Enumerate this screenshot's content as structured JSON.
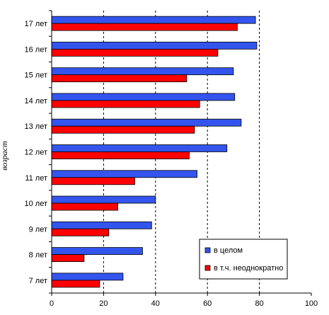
{
  "chart_data": {
    "type": "bar",
    "orientation": "horizontal",
    "categories": [
      "17 лет",
      "16 лет",
      "15 лет",
      "14 лет",
      "13 лет",
      "12 лет",
      "11 лет",
      "10 лет",
      "9 лет",
      "8 лет",
      "7 лет"
    ],
    "series": [
      {
        "name": "в целом",
        "color": "#3355ee",
        "values": [
          78.5,
          79,
          70,
          70.5,
          73,
          67.5,
          56,
          40,
          38.5,
          35,
          27.5
        ]
      },
      {
        "name": "в т.ч. неоднократно",
        "color": "#ff0000",
        "values": [
          71.5,
          64,
          52,
          57,
          55,
          53,
          32,
          25.5,
          22,
          12.5,
          18.5
        ]
      }
    ],
    "ylabel": "возраст",
    "xlabel": "",
    "xlim": [
      0,
      100
    ],
    "xticks": [
      "0",
      "20",
      "40",
      "60",
      "80",
      "100"
    ],
    "grid": "vertical dashed",
    "legend_position": "bottom-right"
  }
}
